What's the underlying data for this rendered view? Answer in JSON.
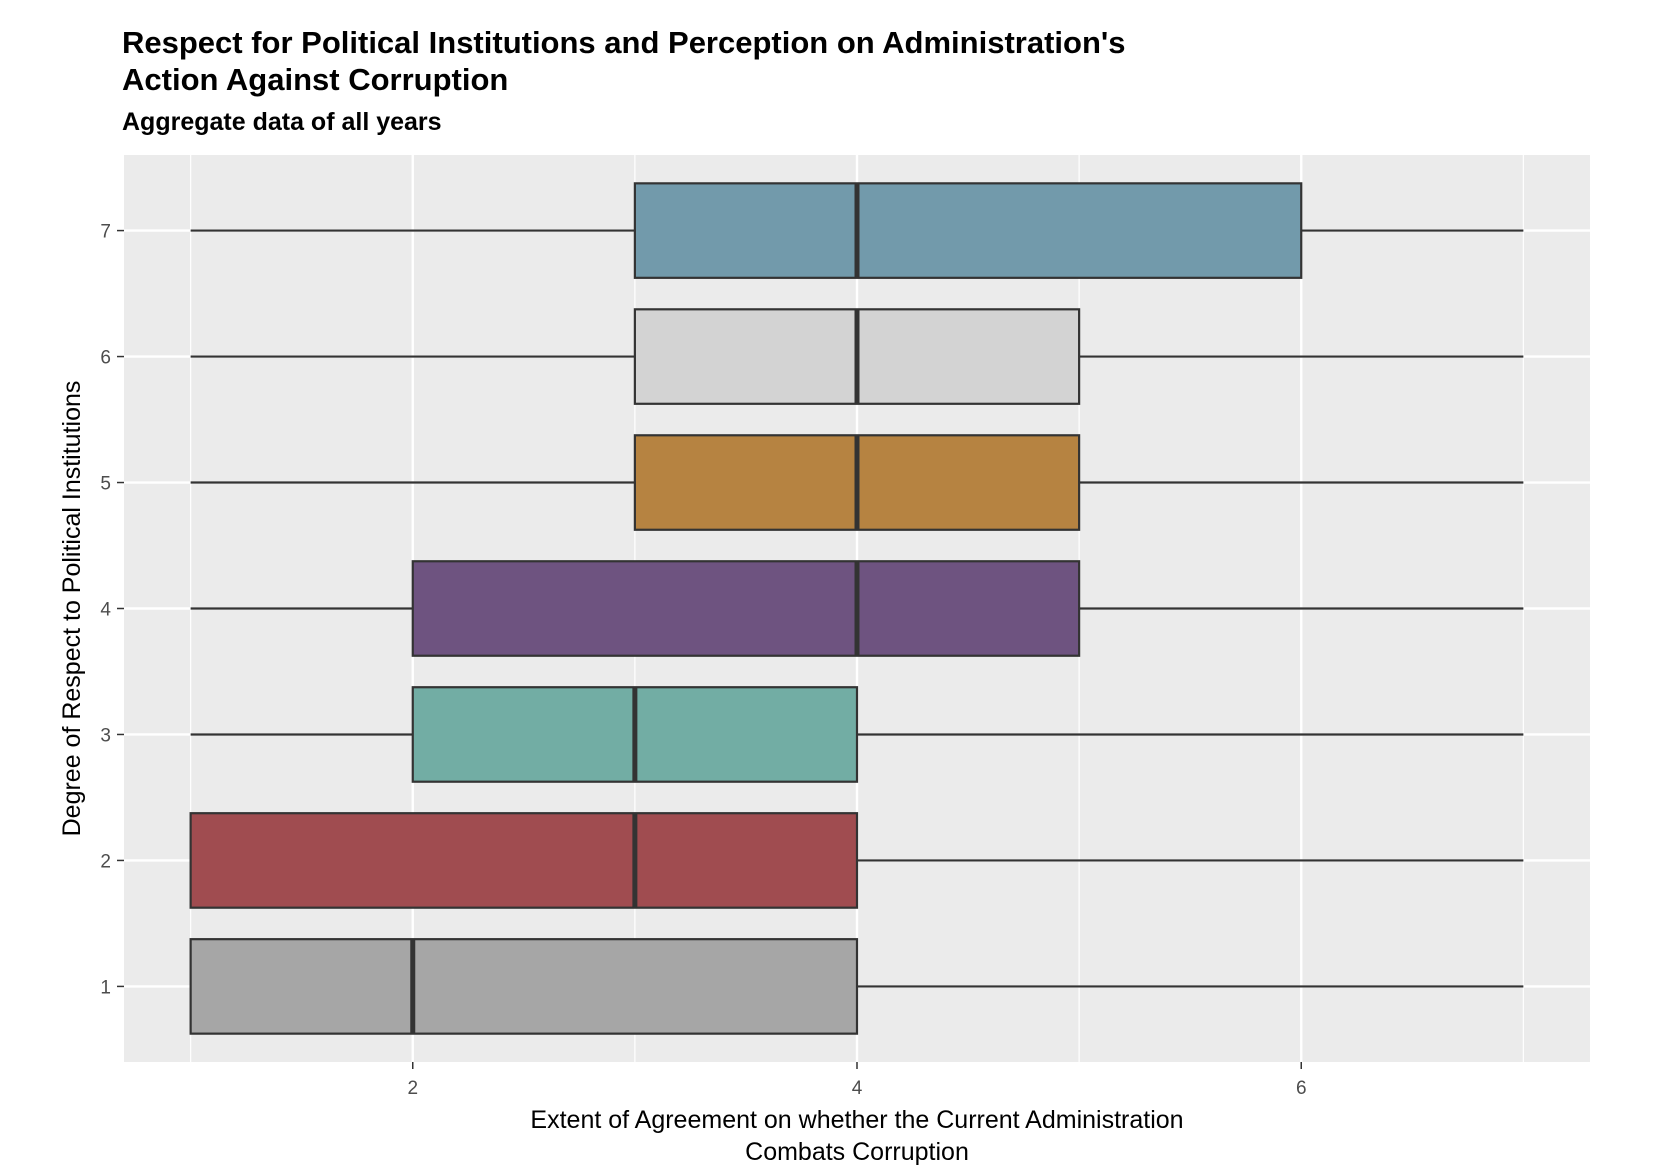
{
  "chart_data": {
    "type": "boxplot",
    "orientation": "horizontal",
    "title_lines": [
      "Respect for Political Institutions and Perception on Administration's",
      "Action Against Corruption"
    ],
    "subtitle": "Aggregate data of all years",
    "xlabel_lines": [
      "Extent of Agreement on whether the Current Administration",
      "Combats Corruption"
    ],
    "ylabel": "Degree of Respect to Political Institutions",
    "xlim": [
      0.7,
      7.3
    ],
    "ylim": [
      0.4,
      7.6
    ],
    "x_ticks": [
      2,
      4,
      6
    ],
    "y_ticks": [
      1,
      2,
      3,
      4,
      5,
      6,
      7
    ],
    "grid": true,
    "legend": "none",
    "series": [
      {
        "category": "1",
        "min": 1,
        "q1": 1,
        "median": 2,
        "q3": 4,
        "max": 7,
        "color": "#a6a6a6"
      },
      {
        "category": "2",
        "min": 1,
        "q1": 1,
        "median": 3,
        "q3": 4,
        "max": 7,
        "color": "#a04c50"
      },
      {
        "category": "3",
        "min": 1,
        "q1": 2,
        "median": 3,
        "q3": 4,
        "max": 7,
        "color": "#72ada4"
      },
      {
        "category": "4",
        "min": 1,
        "q1": 2,
        "median": 4,
        "q3": 5,
        "max": 7,
        "color": "#6e5380"
      },
      {
        "category": "5",
        "min": 1,
        "q1": 3,
        "median": 4,
        "q3": 5,
        "max": 7,
        "color": "#b68341"
      },
      {
        "category": "6",
        "min": 1,
        "q1": 3,
        "median": 4,
        "q3": 5,
        "max": 7,
        "color": "#d3d3d3"
      },
      {
        "category": "7",
        "min": 1,
        "q1": 3,
        "median": 4,
        "q3": 6,
        "max": 7,
        "color": "#729aab"
      }
    ],
    "colors": {
      "panel_bg": "#ebebeb",
      "grid": "#ffffff",
      "box_outline": "#333333"
    }
  }
}
